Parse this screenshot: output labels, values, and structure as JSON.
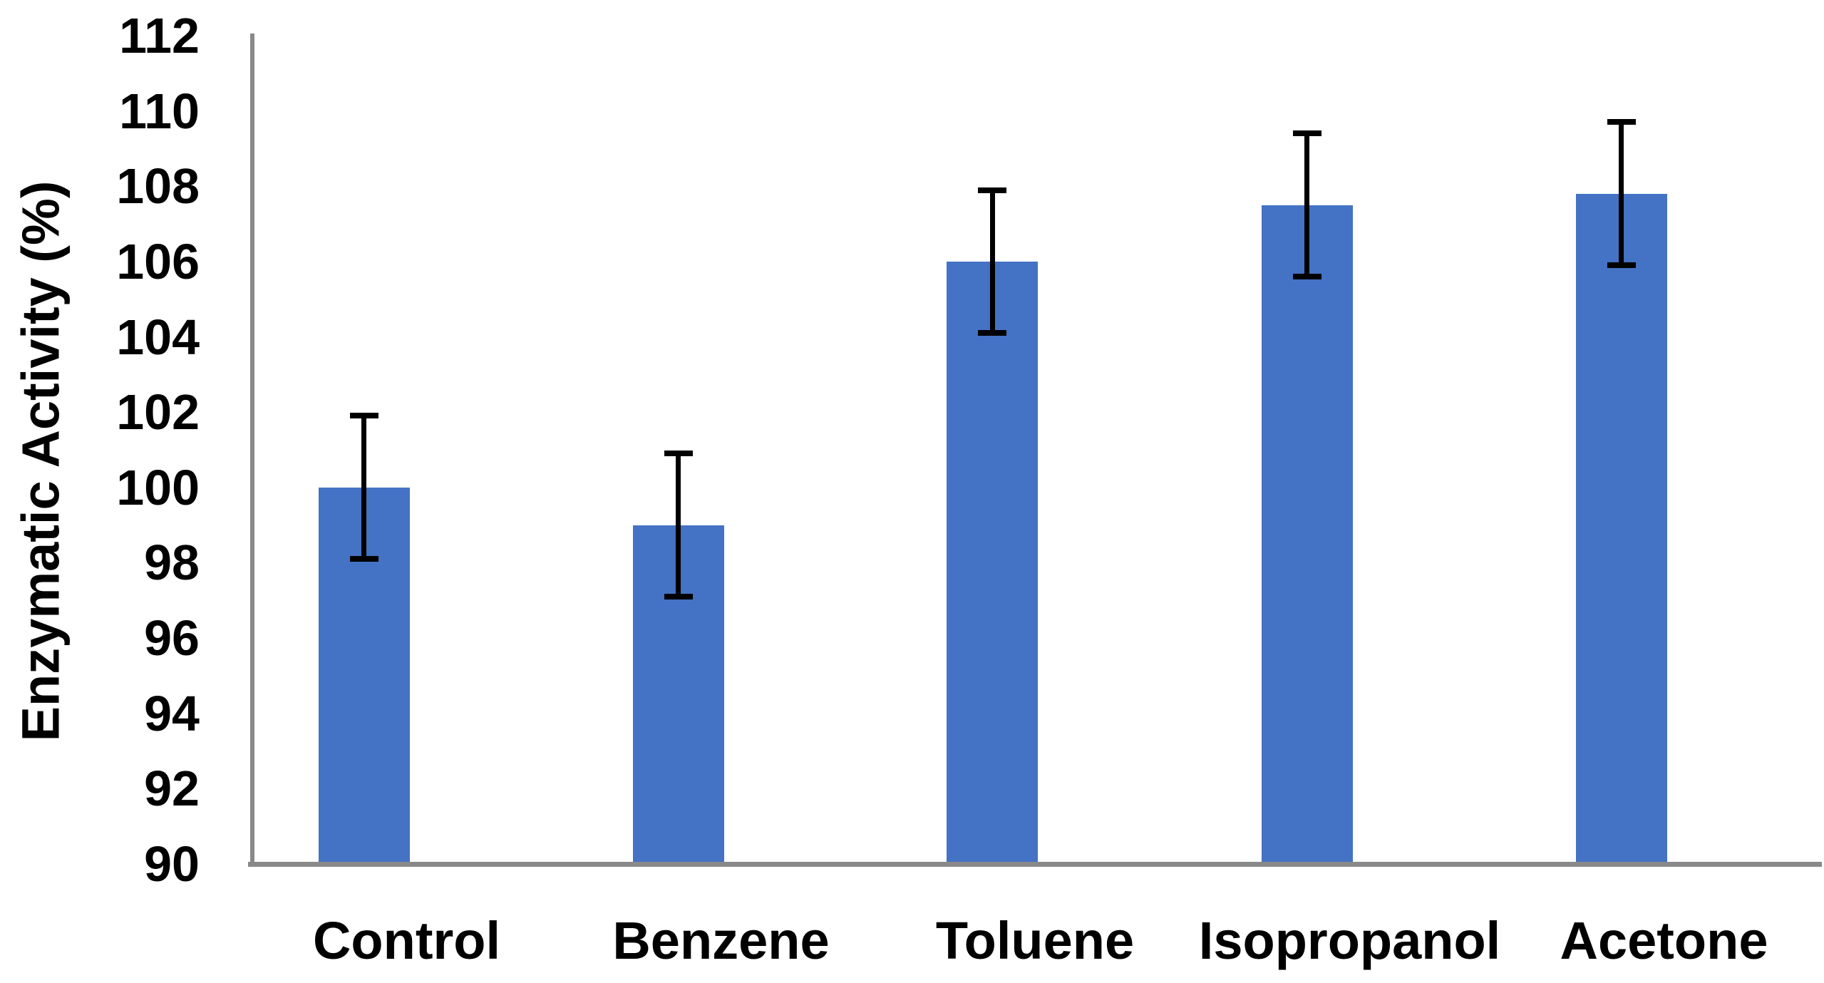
{
  "chart_data": {
    "type": "bar",
    "title": "",
    "categories": [
      "Control",
      "Benzene",
      "Toluene",
      "Isopropanol",
      "Acetone"
    ],
    "values": [
      100,
      99,
      106,
      107.5,
      107.8
    ],
    "error_bars": [
      1.9,
      1.9,
      1.9,
      1.9,
      1.9
    ],
    "xlabel": "",
    "ylabel": "Enzymatic Activity (%)",
    "ylim": [
      90,
      112
    ],
    "ytick_step": 2,
    "ytick_labels": [
      "90",
      "92",
      "94",
      "96",
      "98",
      "100",
      "102",
      "104",
      "106",
      "108",
      "110",
      "112"
    ],
    "grid": false,
    "legend": false,
    "bar_color": "#4472C4",
    "axis_color": "#898989",
    "error_bar_color": "#000000",
    "text_color": "#000000"
  }
}
